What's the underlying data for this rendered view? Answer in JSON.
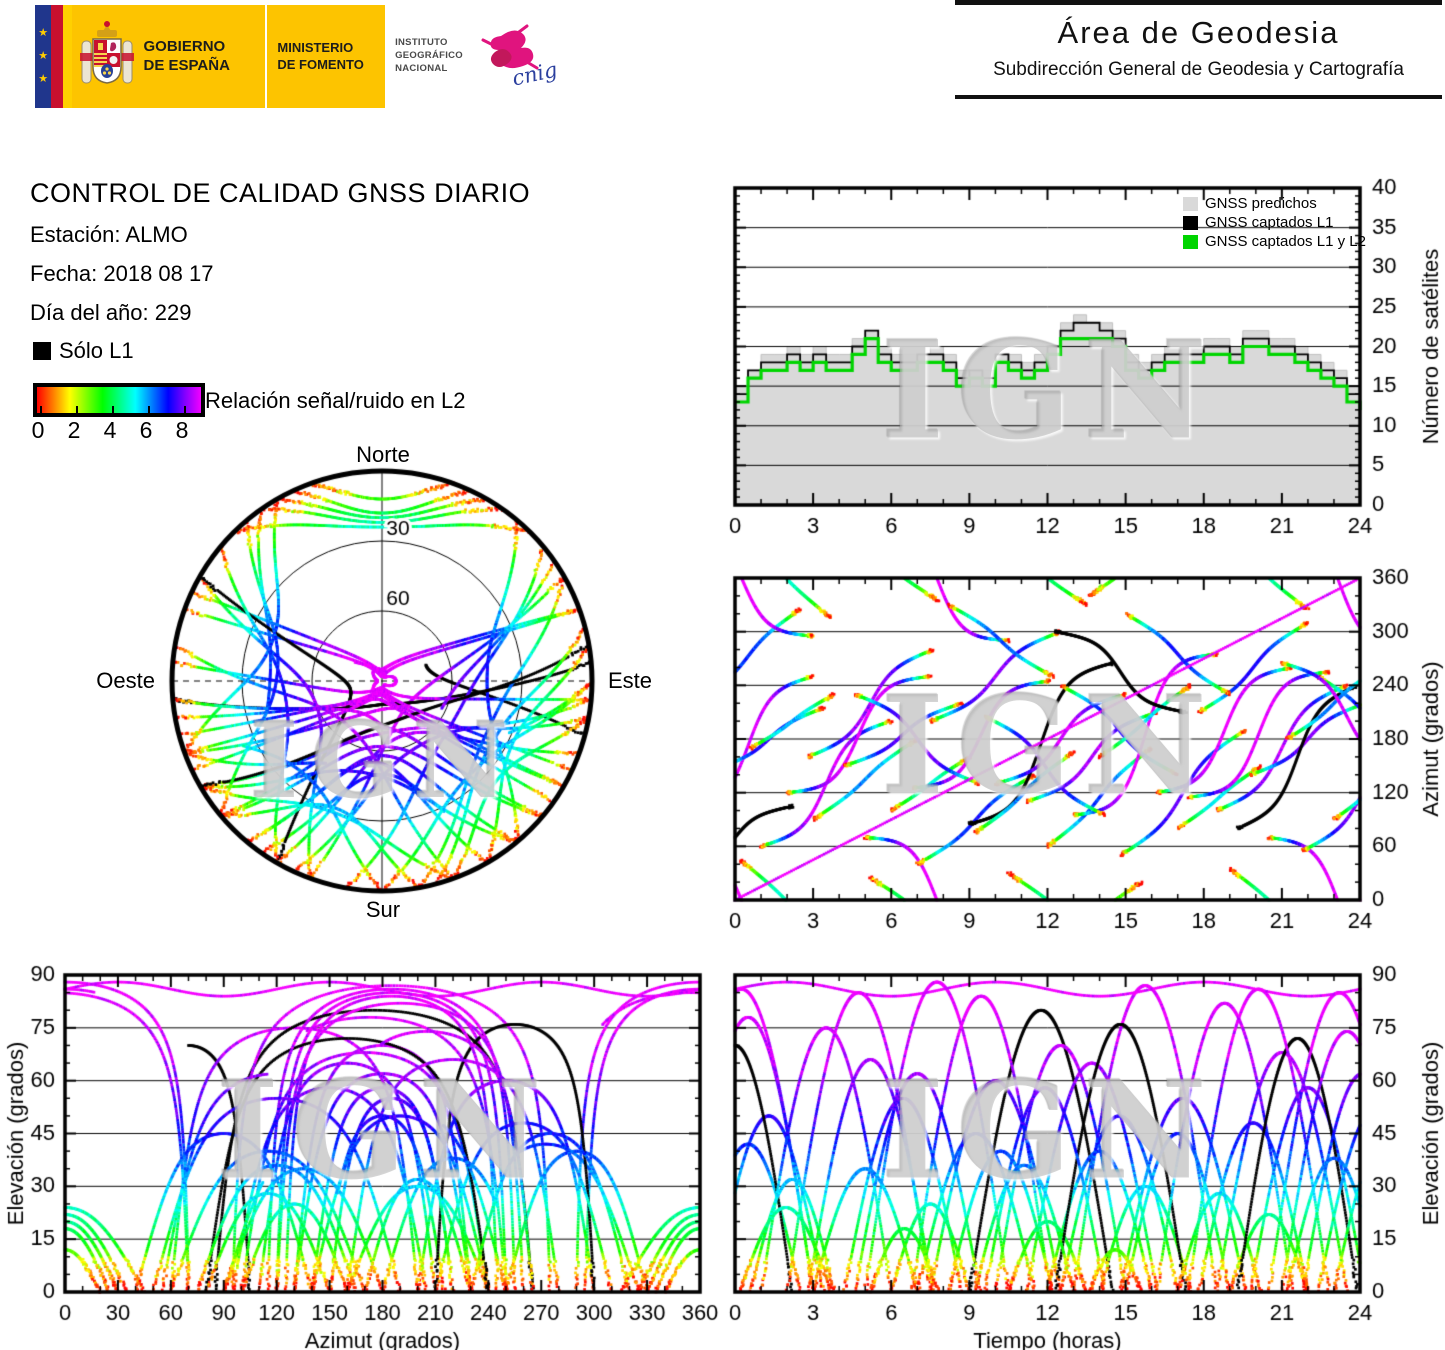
{
  "watermark": "IGN",
  "header": {
    "logo": {
      "gobierno": "GOBIERNO\nDE ESPAÑA",
      "ministerio": "MINISTERIO\nDE FOMENTO",
      "instituto": "INSTITUTO\nGEOGRÁFICO\nNACIONAL",
      "cnig": "cnig",
      "eu_stars": "★"
    },
    "right": {
      "title": "Área de Geodesia",
      "subtitle": "Subdirección General de Geodesia y Cartografía"
    }
  },
  "info": {
    "title": "CONTROL DE CALIDAD GNSS DIARIO",
    "station": "Estación: ALMO",
    "date": "Fecha: 2018 08 17",
    "doy": "Día del año: 229"
  },
  "legend": {
    "solo_l1": "Sólo L1",
    "colorbar_label": "Relación señal/ruido en L2",
    "colorbar_ticks": [
      "0",
      "2",
      "4",
      "6",
      "8"
    ],
    "snr_range": [
      0,
      9.6
    ]
  },
  "skyplot": {
    "north": "Norte",
    "south": "Sur",
    "west": "Oeste",
    "east": "Este",
    "ring_labels": [
      "30",
      "60"
    ]
  },
  "sat_legend": {
    "items": [
      {
        "label": "GNSS predichos",
        "color": "#d9d9d9"
      },
      {
        "label": "GNSS captados L1",
        "color": "#000000"
      },
      {
        "label": "GNSS captados L1 y L2",
        "color": "#00d500"
      }
    ]
  },
  "chart_data": {
    "satellites": {
      "type": "line",
      "step_hours": 0.5,
      "xlabel": "",
      "ylabel": "Número de satélites",
      "xlim": [
        0,
        24
      ],
      "ylim": [
        0,
        40
      ],
      "xticks": [
        0,
        3,
        6,
        9,
        12,
        15,
        18,
        21,
        24
      ],
      "yticks": [
        0,
        5,
        10,
        15,
        20,
        25,
        30,
        35,
        40
      ],
      "series": [
        {
          "name": "GNSS predichos",
          "color": "#d9d9d9",
          "values": [
            15,
            17,
            19,
            19,
            20,
            19,
            20,
            19,
            19,
            21,
            22,
            20,
            19,
            19,
            19,
            20,
            19,
            17,
            17,
            17,
            19,
            19,
            18,
            19,
            20,
            23,
            24,
            23,
            23,
            22,
            19,
            18,
            19,
            20,
            20,
            20,
            21,
            21,
            20,
            22,
            22,
            21,
            21,
            20,
            19,
            18,
            17,
            15,
            14
          ]
        },
        {
          "name": "GNSS captados L1",
          "color": "#000000",
          "values": [
            14,
            17,
            18,
            18,
            19,
            18,
            19,
            18,
            18,
            20,
            22,
            19,
            18,
            18,
            19,
            19,
            18,
            16,
            17,
            16,
            19,
            18,
            17,
            18,
            20,
            22,
            23,
            23,
            22,
            21,
            18,
            17,
            18,
            19,
            19,
            19,
            20,
            20,
            19,
            21,
            21,
            20,
            20,
            19,
            18,
            17,
            16,
            14,
            13
          ]
        },
        {
          "name": "GNSS captados L1 y L2",
          "color": "#00d500",
          "values": [
            13,
            16,
            17,
            17,
            18,
            17,
            18,
            17,
            17,
            19,
            21,
            18,
            17,
            17,
            18,
            18,
            17,
            15,
            16,
            15,
            18,
            17,
            16,
            17,
            19,
            21,
            21,
            21,
            21,
            20,
            17,
            16,
            17,
            18,
            18,
            18,
            19,
            19,
            18,
            20,
            20,
            19,
            19,
            18,
            17,
            16,
            15,
            13,
            12
          ]
        }
      ]
    },
    "skyplot": {
      "type": "scatter",
      "projection": "polar",
      "rings_elevation": [
        30,
        60
      ],
      "labels": {
        "n": "Norte",
        "s": "Sur",
        "w": "Oeste",
        "e": "Este"
      }
    },
    "azimuth_time": {
      "type": "scatter",
      "xlabel": "",
      "ylabel": "Azimut (grados)",
      "xlim": [
        0,
        24
      ],
      "ylim": [
        0,
        360
      ],
      "xticks": [
        0,
        3,
        6,
        9,
        12,
        15,
        18,
        21,
        24
      ],
      "yticks": [
        0,
        60,
        120,
        180,
        240,
        300,
        360
      ]
    },
    "elevation_azimuth": {
      "type": "scatter",
      "xlabel": "Azimut (grados)",
      "ylabel": "Elevación (grados)",
      "xlim": [
        0,
        360
      ],
      "ylim": [
        0,
        90
      ],
      "xticks": [
        0,
        30,
        60,
        90,
        120,
        150,
        180,
        210,
        240,
        270,
        300,
        330,
        360
      ],
      "yticks": [
        0,
        15,
        30,
        45,
        60,
        75,
        90
      ]
    },
    "elevation_time": {
      "type": "scatter",
      "xlabel": "Tiempo (horas)",
      "ylabel": "Elevación (grados)",
      "xlim": [
        0,
        24
      ],
      "ylim": [
        0,
        90
      ],
      "xticks": [
        0,
        3,
        6,
        9,
        12,
        15,
        18,
        21,
        24
      ],
      "yticks": [
        0,
        15,
        30,
        45,
        60,
        75,
        90
      ]
    }
  },
  "satellite_passes": [
    {
      "r": 220,
      "s": 325,
      "e": 42,
      "t0": -1.5,
      "d": 4.0
    },
    {
      "r": 95,
      "s": 250,
      "e": 78,
      "t0": -2.0,
      "d": 5.0
    },
    {
      "r": 145,
      "s": 215,
      "e": 50,
      "t0": -0.8,
      "d": 4.2
    },
    {
      "r": 65,
      "s": 295,
      "e": 86,
      "t0": -2.5,
      "d": 5.5
    },
    {
      "r": 35,
      "s": 105,
      "e": 70,
      "t0": -2.2,
      "d": 4.4,
      "k": "black"
    },
    {
      "r": 45,
      "s": 315,
      "e": 24,
      "t0": 0.2,
      "d": 3.5
    },
    {
      "r": 60,
      "s": 200,
      "e": 75,
      "t0": 1.0,
      "d": 5.0
    },
    {
      "r": 120,
      "s": 250,
      "e": 85,
      "t0": 2.0,
      "d": 5.5
    },
    {
      "r": 90,
      "s": 180,
      "e": 35,
      "t0": 3.0,
      "d": 4.0
    },
    {
      "r": 150,
      "s": 220,
      "e": 55,
      "t0": 4.2,
      "d": 4.5
    },
    {
      "r": 70,
      "s": 290,
      "e": 88,
      "t0": 5.0,
      "d": 5.5
    },
    {
      "r": 100,
      "s": 160,
      "e": 25,
      "t0": 6.0,
      "d": 3.0
    },
    {
      "r": 40,
      "s": 140,
      "e": 45,
      "t0": 7.0,
      "d": 4.5
    },
    {
      "r": 200,
      "s": 300,
      "e": 60,
      "t0": 7.5,
      "d": 5.0
    },
    {
      "r": 330,
      "s": 250,
      "e": 40,
      "t0": 8.2,
      "d": 4.0
    },
    {
      "r": 85,
      "s": 265,
      "e": 80,
      "t0": 9.0,
      "d": 5.5,
      "k": "black"
    },
    {
      "r": 130,
      "s": 230,
      "e": 70,
      "t0": 10.0,
      "d": 5.0
    },
    {
      "r": 30,
      "s": 330,
      "e": 20,
      "t0": 10.5,
      "d": 3.0
    },
    {
      "r": 110,
      "s": 210,
      "e": 65,
      "t0": 11.2,
      "d": 5.0
    },
    {
      "r": 60,
      "s": 170,
      "e": 40,
      "t0": 12.0,
      "d": 4.0
    },
    {
      "r": 240,
      "s": 140,
      "e": 50,
      "t0": 12.5,
      "d": 4.5
    },
    {
      "r": 95,
      "s": 275,
      "e": 87,
      "t0": 13.0,
      "d": 5.5
    },
    {
      "r": 160,
      "s": 240,
      "e": 30,
      "t0": 14.0,
      "d": 3.5
    },
    {
      "r": 50,
      "s": 190,
      "e": 55,
      "t0": 14.8,
      "d": 4.8
    },
    {
      "r": 300,
      "s": 210,
      "e": 76,
      "t0": 12.3,
      "d": 5.0,
      "k": "black"
    },
    {
      "r": 120,
      "s": 260,
      "e": 82,
      "t0": 16.2,
      "d": 5.2
    },
    {
      "r": 80,
      "s": 150,
      "e": 28,
      "t0": 17.0,
      "d": 3.2
    },
    {
      "r": 210,
      "s": 310,
      "e": 48,
      "t0": 17.8,
      "d": 4.2
    },
    {
      "r": 100,
      "s": 240,
      "e": 68,
      "t0": 18.5,
      "d": 5.0
    },
    {
      "r": 35,
      "s": 325,
      "e": 22,
      "t0": 19.0,
      "d": 3.0
    },
    {
      "r": 140,
      "s": 220,
      "e": 58,
      "t0": 19.8,
      "d": 4.4
    },
    {
      "r": 80,
      "s": 240,
      "e": 72,
      "t0": 19.3,
      "d": 4.6,
      "k": "black"
    },
    {
      "r": 70,
      "s": 280,
      "e": 85,
      "t0": 20.5,
      "d": 5.4
    },
    {
      "r": 180,
      "s": 260,
      "e": 38,
      "t0": 21.2,
      "d": 3.6
    },
    {
      "r": 55,
      "s": 185,
      "e": 62,
      "t0": 21.8,
      "d": 4.6
    },
    {
      "r": 250,
      "s": 130,
      "e": 52,
      "t0": 22.4,
      "d": 4.4
    },
    {
      "r": 90,
      "s": 200,
      "e": 44,
      "t0": 23.0,
      "d": 4.0
    },
    {
      "r": 125,
      "s": 245,
      "e": 84,
      "t0": 6.8,
      "d": 5.3
    },
    {
      "r": 160,
      "s": 280,
      "e": 66,
      "t0": 2.8,
      "d": 4.8
    },
    {
      "r": 205,
      "s": 95,
      "e": 58,
      "t0": 9.6,
      "d": 4.6
    },
    {
      "r": 320,
      "s": 230,
      "e": 45,
      "t0": 15.0,
      "d": 4.0
    },
    {
      "r": 25,
      "s": 335,
      "e": 18,
      "t0": 5.2,
      "d": 2.6
    },
    {
      "r": 340,
      "s": 20,
      "e": 12,
      "t0": 13.6,
      "d": 2.0
    },
    {
      "r": 115,
      "s": 255,
      "e": 86,
      "t0": 17.4,
      "d": 5.4
    },
    {
      "r": 170,
      "s": 230,
      "e": 32,
      "t0": 0.6,
      "d": 3.2
    },
    {
      "r": 230,
      "s": 130,
      "e": 62,
      "t0": 4.6,
      "d": 4.8
    },
    {
      "r": 75,
      "s": 165,
      "e": 36,
      "t0": 9.2,
      "d": 3.8
    },
    {
      "r": 265,
      "s": 145,
      "e": 74,
      "t0": 21.0,
      "d": 5.0
    },
    {
      "ring": true,
      "e": 86,
      "t0": 0,
      "d": 24,
      "dot": true
    }
  ]
}
